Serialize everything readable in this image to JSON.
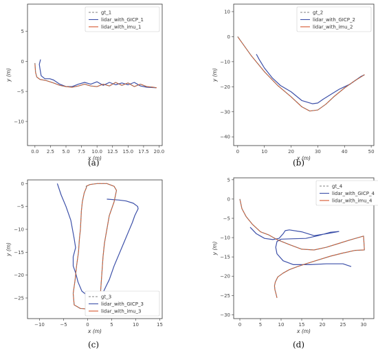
{
  "panel_labels": [
    "(a)",
    "(b)",
    "(c)",
    "(d)"
  ],
  "colors": {
    "gt": "#7f7f7f",
    "gicp": "#3b4fa8",
    "imu": "#d4542a"
  },
  "chart_data": [
    {
      "type": "line",
      "panel": "(a)",
      "xlabel": "x (m)",
      "ylabel": "y (m)",
      "xlim": [
        -1.2,
        20.5
      ],
      "ylim": [
        -14,
        9.5
      ],
      "xticks": [
        0.0,
        2.5,
        5.0,
        7.5,
        10.0,
        12.5,
        15.0,
        17.5,
        20.0
      ],
      "xtick_labels": [
        "0.0",
        "2.5",
        "5.0",
        "7.5",
        "10.0",
        "12.5",
        "15.0",
        "17.5",
        "20.0"
      ],
      "yticks": [
        5,
        0,
        -5,
        -10
      ],
      "ytick_labels": [
        "5",
        "0",
        "−5",
        "−10"
      ],
      "legend_position": "top-right",
      "series": [
        {
          "name": "gt_1",
          "style": "dashed",
          "x": [
            0.0,
            0.1,
            0.3,
            0.8,
            1.8,
            3.0,
            4.0,
            5.0,
            6.0,
            7.0,
            8.0,
            9.0,
            10.0,
            11.0,
            12.0,
            13.0,
            14.0,
            15.0,
            16.0,
            17.0,
            18.0,
            19.0,
            19.6
          ],
          "y": [
            -0.3,
            -1.8,
            -2.6,
            -3.0,
            -3.2,
            -3.6,
            -4.0,
            -4.2,
            -4.3,
            -4.1,
            -3.8,
            -4.1,
            -4.2,
            -3.8,
            -4.1,
            -3.5,
            -4.0,
            -3.6,
            -4.2,
            -3.8,
            -4.2,
            -4.3,
            -4.4
          ]
        },
        {
          "name": "lidar_with_GICP_1",
          "style": "solid",
          "x": [
            0.9,
            0.7,
            0.8,
            1.0,
            1.6,
            2.4,
            3.0,
            4.0,
            5.0,
            6.0,
            7.0,
            8.0,
            9.0,
            10.0,
            11.0,
            12.0,
            13.0,
            14.0,
            15.0,
            16.0,
            17.0,
            18.0,
            19.5
          ],
          "y": [
            0.3,
            -0.5,
            -1.2,
            -2.4,
            -2.9,
            -2.9,
            -3.1,
            -3.8,
            -4.2,
            -4.2,
            -3.8,
            -3.5,
            -3.8,
            -3.4,
            -4.0,
            -3.5,
            -3.9,
            -3.6,
            -3.9,
            -3.5,
            -4.1,
            -4.3,
            -4.4
          ]
        },
        {
          "name": "lidar_with_imu_1",
          "style": "solid",
          "x": [
            0.0,
            0.1,
            0.3,
            0.8,
            1.8,
            3.0,
            4.0,
            5.0,
            6.0,
            7.0,
            8.0,
            9.0,
            10.0,
            11.0,
            12.0,
            13.0,
            14.0,
            15.0,
            16.0,
            17.0,
            18.0,
            19.0,
            19.6
          ],
          "y": [
            -0.3,
            -1.8,
            -2.6,
            -3.0,
            -3.2,
            -3.6,
            -4.0,
            -4.2,
            -4.3,
            -4.1,
            -3.8,
            -4.1,
            -4.2,
            -3.8,
            -4.1,
            -3.5,
            -4.0,
            -3.6,
            -4.2,
            -3.8,
            -4.2,
            -4.3,
            -4.4
          ]
        }
      ]
    },
    {
      "type": "line",
      "panel": "(b)",
      "xlabel": "x (m)",
      "ylabel": "y (m)",
      "xlim": [
        -1.5,
        51
      ],
      "ylim": [
        -43.5,
        13
      ],
      "xticks": [
        0,
        10,
        20,
        30,
        40,
        50
      ],
      "xtick_labels": [
        "0",
        "10",
        "20",
        "30",
        "40",
        "50"
      ],
      "yticks": [
        10,
        0,
        -10,
        -20,
        -30,
        -40
      ],
      "ytick_labels": [
        "10",
        "0",
        "−10",
        "−20",
        "−30",
        "−40"
      ],
      "legend_position": "top-right",
      "series": [
        {
          "name": "gt_2",
          "style": "dashed",
          "x": [
            0,
            2,
            5,
            10,
            15,
            20,
            24,
            27,
            30,
            33,
            36,
            40,
            44,
            47.5
          ],
          "y": [
            0,
            -3,
            -7.5,
            -14,
            -19.5,
            -24,
            -28,
            -29.7,
            -29.3,
            -27,
            -24,
            -20.5,
            -17.5,
            -15.2
          ]
        },
        {
          "name": "lidar_with_GICP_2",
          "style": "solid",
          "x": [
            7,
            8,
            10,
            13,
            16,
            20,
            24,
            28,
            30,
            32,
            35,
            38,
            42,
            46,
            47.5
          ],
          "y": [
            -7,
            -9,
            -12.5,
            -16.5,
            -19.5,
            -22,
            -25.5,
            -26.8,
            -26.5,
            -25,
            -23,
            -21,
            -19,
            -16,
            -15.2
          ]
        },
        {
          "name": "lidar_with_imu_2",
          "style": "solid",
          "x": [
            0,
            2,
            5,
            10,
            15,
            20,
            24,
            27,
            30,
            33,
            36,
            40,
            44,
            47.5
          ],
          "y": [
            0,
            -3,
            -7.5,
            -14,
            -19.5,
            -24,
            -28,
            -29.7,
            -29.3,
            -27,
            -24,
            -20.5,
            -17.5,
            -15.2
          ]
        }
      ]
    },
    {
      "type": "line",
      "panel": "(c)",
      "xlabel": "x (m)",
      "ylabel": "y (m)",
      "xlim": [
        -12.5,
        15.5
      ],
      "ylim": [
        -29.5,
        0.8
      ],
      "xticks": [
        -10,
        -5,
        0,
        5,
        10,
        15
      ],
      "xtick_labels": [
        "−10",
        "−5",
        "0",
        "5",
        "10",
        "15"
      ],
      "yticks": [
        0,
        -5,
        -10,
        -15,
        -20,
        -25
      ],
      "ytick_labels": [
        "0",
        "−5",
        "−10",
        "−15",
        "−20",
        "−25"
      ],
      "legend_position": "bottom-right",
      "series": [
        {
          "name": "gt_3",
          "style": "dashed",
          "x": [
            -0.2,
            -0.3,
            0.5,
            2.0,
            4.0,
            5.5,
            6.0,
            5.5,
            4.5,
            4.0,
            3.5,
            3.2,
            3.0,
            2.8,
            2.5,
            1.5,
            0.0,
            -1.5,
            -2.8,
            -3.0,
            -2.6,
            -2.3,
            -1.9,
            -1.7,
            -1.5,
            -1.4,
            -1.3,
            -1.1,
            -0.9,
            -0.7,
            -0.3,
            -0.2
          ],
          "y": [
            -0.5,
            -0.6,
            -0.2,
            0.0,
            0.0,
            -0.6,
            -1.5,
            -4,
            -7,
            -10,
            -13,
            -16,
            -19,
            -22,
            -26.5,
            -27.2,
            -27.4,
            -27.3,
            -26.5,
            -24.0,
            -21.0,
            -18,
            -15,
            -12,
            -10,
            -8,
            -6,
            -4,
            -3,
            -2,
            -1,
            -0.5
          ]
        },
        {
          "name": "lidar_with_GICP_3",
          "style": "solid",
          "x": [
            -6.3,
            -5.5,
            -4.5,
            -3.5,
            -2.8,
            -2.5,
            -3.0,
            -3.0,
            -2.5,
            -2.0,
            -1.2,
            0.0,
            1.5,
            3.0,
            3.8,
            4.5,
            5.0,
            5.5,
            6.5,
            7.5,
            8.5,
            9.3,
            9.8,
            10.5,
            10.4,
            9.5,
            8.0,
            6.5,
            4.0
          ],
          "y": [
            0.0,
            -2.5,
            -5.0,
            -8.0,
            -12.0,
            -14.0,
            -16.0,
            -18.0,
            -19.5,
            -21.5,
            -23.5,
            -24.5,
            -24.8,
            -24.3,
            -22.5,
            -21.0,
            -19.5,
            -18.0,
            -15.5,
            -13.0,
            -10.5,
            -8.5,
            -7.0,
            -5.5,
            -5.0,
            -4.3,
            -3.8,
            -3.6,
            -3.4
          ]
        },
        {
          "name": "lidar_with_imu_3",
          "style": "solid",
          "x": [
            -0.2,
            -0.3,
            0.5,
            2.0,
            4.0,
            5.5,
            6.0,
            5.5,
            4.5,
            4.0,
            3.5,
            3.2,
            3.0,
            2.8,
            2.5,
            1.5,
            0.0,
            -1.5,
            -2.8,
            -3.0,
            -2.6,
            -2.3,
            -1.9,
            -1.7,
            -1.5,
            -1.4,
            -1.3,
            -1.1,
            -0.9,
            -0.7,
            -0.3,
            -0.2
          ],
          "y": [
            -0.5,
            -0.6,
            -0.2,
            0.0,
            0.0,
            -0.6,
            -1.5,
            -4,
            -7,
            -10,
            -13,
            -16,
            -19,
            -22,
            -26.5,
            -27.2,
            -27.4,
            -27.3,
            -26.5,
            -24.0,
            -21.0,
            -18,
            -15,
            -12,
            -10,
            -8,
            -6,
            -4,
            -3,
            -2,
            -1,
            -0.5
          ]
        }
      ]
    },
    {
      "type": "line",
      "panel": "(d)",
      "xlabel": "x (m)",
      "ylabel": "y (m)",
      "xlim": [
        -1.5,
        32.5
      ],
      "ylim": [
        -31,
        5.5
      ],
      "xticks": [
        0,
        5,
        10,
        15,
        20,
        25,
        30
      ],
      "xtick_labels": [
        "0",
        "5",
        "10",
        "15",
        "20",
        "25",
        "30"
      ],
      "yticks": [
        5,
        0,
        -5,
        -10,
        -15,
        -20,
        -25,
        -30
      ],
      "ytick_labels": [
        "5",
        "0",
        "−5",
        "−10",
        "−15",
        "−20",
        "−25",
        "−30"
      ],
      "legend_position": "top-left",
      "series": [
        {
          "name": "gt_4",
          "style": "dashed",
          "x": [
            0,
            0.5,
            1.5,
            3,
            5,
            7,
            9,
            12,
            15,
            18,
            21,
            24,
            27,
            30,
            30.2,
            28,
            25,
            22,
            19,
            16,
            14,
            12,
            10.5,
            9.2,
            8.6,
            8.4,
            8.5,
            8.8,
            9.0
          ],
          "y": [
            0,
            -2.5,
            -4.5,
            -6.5,
            -8.5,
            -9.3,
            -10.5,
            -11.8,
            -13.0,
            -13.2,
            -12.5,
            -11.5,
            -10.5,
            -9.6,
            -13.2,
            -13.3,
            -14.0,
            -14.8,
            -15.8,
            -16.8,
            -17.5,
            -18.3,
            -19.2,
            -20.2,
            -21.5,
            -22.5,
            -23.5,
            -24.7,
            -25.6
          ]
        },
        {
          "name": "lidar_with_GICP_4",
          "style": "solid",
          "x": [
            2.5,
            4.0,
            6.0,
            8.0,
            9.5,
            10.5,
            11.0,
            12.0,
            15.0,
            18.0,
            21.0,
            24.0,
            22.0,
            19.0,
            16.0,
            13.0,
            10.0,
            9.0,
            8.7,
            9.0,
            10.5,
            13.0,
            17.0,
            21.0,
            25.0,
            27.0
          ],
          "y": [
            -7.3,
            -9.0,
            -10.2,
            -10.5,
            -10.2,
            -9.0,
            -8.2,
            -8.0,
            -8.5,
            -9.5,
            -9.0,
            -8.4,
            -8.6,
            -9.5,
            -10.2,
            -10.3,
            -10.4,
            -11.0,
            -12.5,
            -14.2,
            -16.0,
            -17.0,
            -17.0,
            -16.8,
            -16.8,
            -17.5
          ]
        },
        {
          "name": "lidar_with_imu_4",
          "style": "solid",
          "x": [
            0,
            0.5,
            1.5,
            3,
            5,
            7,
            9,
            12,
            15,
            18,
            21,
            24,
            27,
            30,
            30.2,
            28,
            25,
            22,
            19,
            16,
            14,
            12,
            10.5,
            9.2,
            8.6,
            8.4,
            8.5,
            8.8,
            9.0
          ],
          "y": [
            0,
            -2.5,
            -4.5,
            -6.5,
            -8.5,
            -9.3,
            -10.5,
            -11.8,
            -13.0,
            -13.2,
            -12.5,
            -11.5,
            -10.5,
            -9.6,
            -13.2,
            -13.3,
            -14.0,
            -14.8,
            -15.8,
            -16.8,
            -17.5,
            -18.3,
            -19.2,
            -20.2,
            -21.5,
            -22.5,
            -23.5,
            -24.7,
            -25.6
          ]
        }
      ]
    }
  ]
}
